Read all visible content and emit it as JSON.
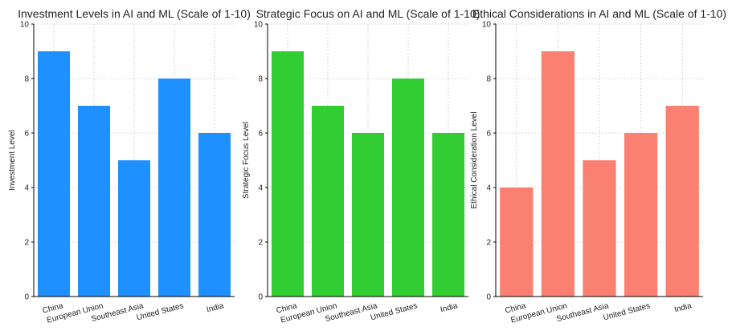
{
  "chart_data": [
    {
      "type": "bar",
      "title": "Investment Levels in AI and ML (Scale of 1-10)",
      "y_label": "Investment Level",
      "categories": [
        "China",
        "European Union",
        "Southeast Asia",
        "United States",
        "India"
      ],
      "values": [
        9,
        7,
        5,
        8,
        6
      ],
      "color": "#1e90ff",
      "ylim": [
        0,
        10
      ],
      "yticks": [
        0,
        2,
        4,
        6,
        8,
        10
      ],
      "grid": true
    },
    {
      "type": "bar",
      "title": "Strategic Focus on AI and ML (Scale of 1-10)",
      "y_label": "Strategic Focus Level",
      "categories": [
        "China",
        "European Union",
        "Southeast Asia",
        "United States",
        "India"
      ],
      "values": [
        9,
        7,
        6,
        8,
        6
      ],
      "color": "#32cd32",
      "ylim": [
        0,
        10
      ],
      "yticks": [
        0,
        2,
        4,
        6,
        8,
        10
      ],
      "grid": true
    },
    {
      "type": "bar",
      "title": "Ethical Considerations in AI and ML (Scale of 1-10)",
      "y_label": "Ethical Consideration Level",
      "categories": [
        "China",
        "European Union",
        "Southeast Asia",
        "United States",
        "India"
      ],
      "values": [
        4,
        9,
        5,
        6,
        7
      ],
      "color": "#fa8072",
      "ylim": [
        0,
        10
      ],
      "yticks": [
        0,
        2,
        4,
        6,
        8,
        10
      ],
      "grid": true
    }
  ]
}
